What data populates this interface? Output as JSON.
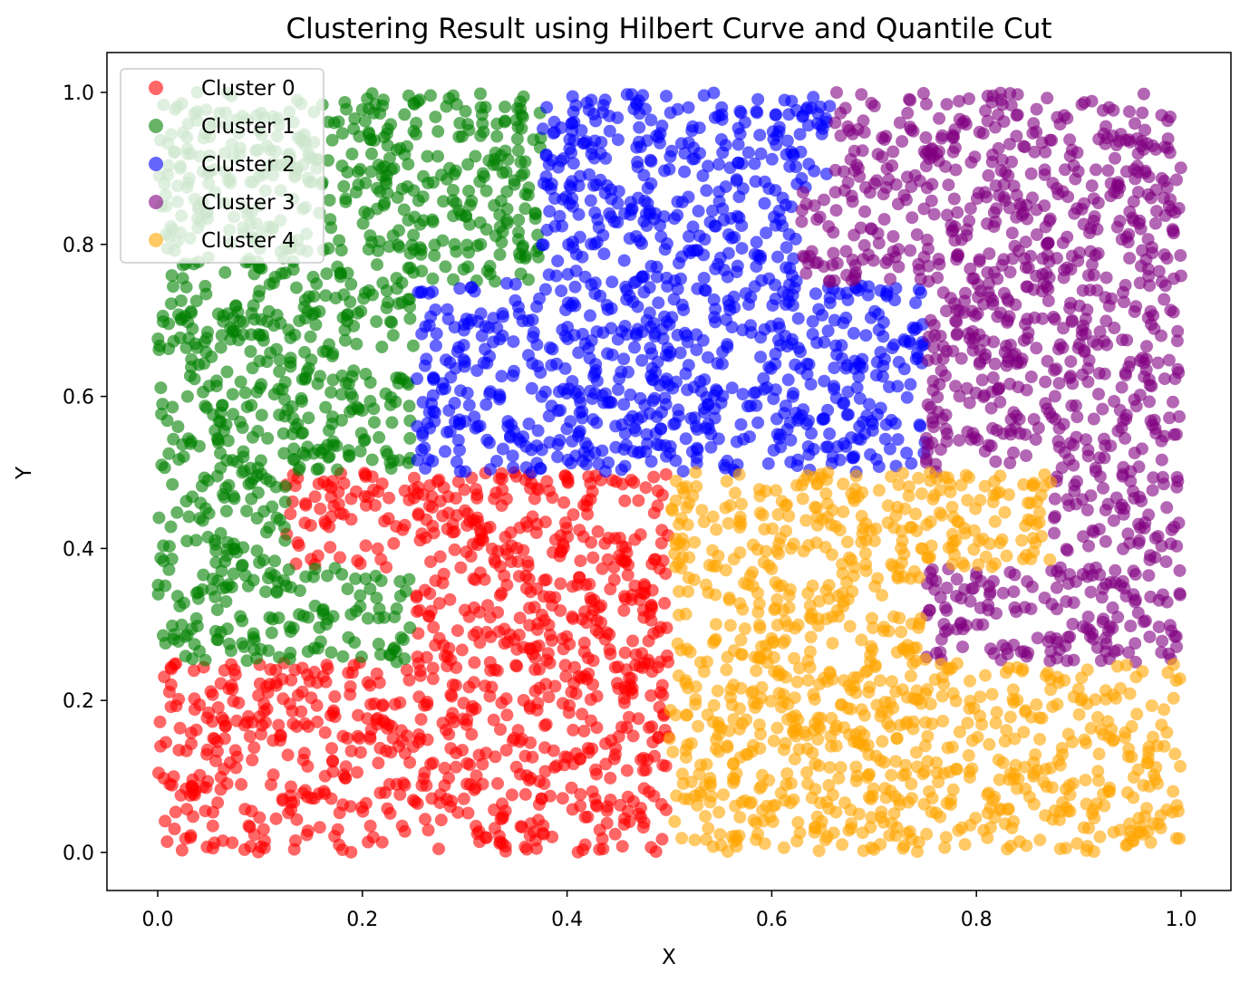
{
  "chart_data": {
    "type": "scatter",
    "title": "Clustering Result using Hilbert Curve and Quantile Cut",
    "xlabel": "X",
    "ylabel": "Y",
    "xlim": [
      -0.05,
      1.05
    ],
    "ylim": [
      -0.05,
      1.05
    ],
    "xticks": [
      "0.0",
      "0.2",
      "0.4",
      "0.6",
      "0.8",
      "1.0"
    ],
    "yticks": [
      "0.0",
      "0.2",
      "0.4",
      "0.6",
      "0.8",
      "1.0"
    ],
    "grid": false,
    "legend_position": "top-left",
    "marker_alpha": 0.6,
    "series": [
      {
        "name": "Cluster 0",
        "color": "#ff0000",
        "regions": [
          [
            0,
            0.5,
            0,
            0.25
          ],
          [
            0.25,
            0.5,
            0.25,
            0.5
          ],
          [
            0.125,
            0.25,
            0.375,
            0.5
          ]
        ]
      },
      {
        "name": "Cluster 1",
        "color": "#008000",
        "regions": [
          [
            0,
            0.25,
            0.25,
            0.375
          ],
          [
            0,
            0.125,
            0.375,
            0.5
          ],
          [
            0,
            0.25,
            0.5,
            0.75
          ],
          [
            0,
            0.25,
            0.75,
            1
          ],
          [
            0.25,
            0.375,
            0.75,
            1
          ]
        ]
      },
      {
        "name": "Cluster 2",
        "color": "#0000ff",
        "regions": [
          [
            0.375,
            0.625,
            0.75,
            1
          ],
          [
            0.625,
            0.66,
            0.875,
            1
          ],
          [
            0.25,
            0.75,
            0.5,
            0.75
          ]
        ]
      },
      {
        "name": "Cluster 3",
        "color": "#800080",
        "regions": [
          [
            0.75,
            1,
            0.5,
            1
          ],
          [
            0.625,
            0.75,
            0.75,
            0.875
          ],
          [
            0.66,
            0.75,
            0.875,
            1
          ],
          [
            0.875,
            1,
            0.25,
            0.5
          ],
          [
            0.75,
            0.875,
            0.25,
            0.375
          ]
        ]
      },
      {
        "name": "Cluster 4",
        "color": "#ffa500",
        "regions": [
          [
            0.5,
            0.75,
            0,
            0.5
          ],
          [
            0.75,
            1,
            0,
            0.25
          ],
          [
            0.75,
            0.875,
            0.375,
            0.5
          ]
        ]
      }
    ]
  }
}
